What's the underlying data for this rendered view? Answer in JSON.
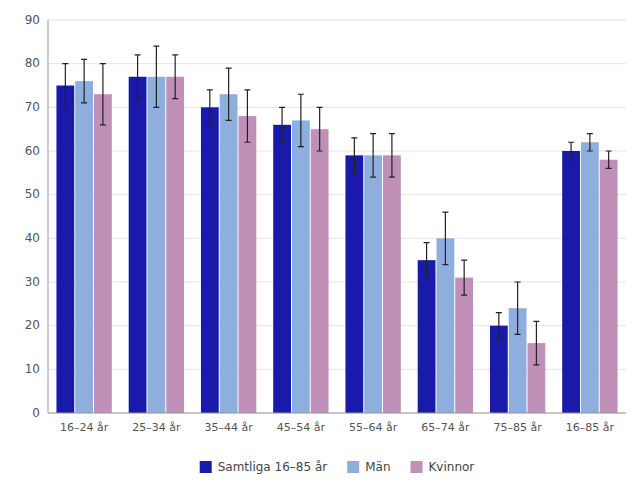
{
  "chart_data": {
    "type": "bar",
    "categories": [
      "16–24 år",
      "25–34 år",
      "35–44 år",
      "45–54 år",
      "55–64 år",
      "65–74 år",
      "75–85 år",
      "16–85 år"
    ],
    "series": [
      {
        "name": "Samtliga 16–85 år",
        "color": "#1a1aaa",
        "values": [
          75,
          77,
          70,
          66,
          59,
          35,
          20,
          60
        ],
        "errors": [
          5,
          5,
          4,
          4,
          4,
          4,
          3,
          2
        ]
      },
      {
        "name": "Män",
        "color": "#8eaedd",
        "values": [
          76,
          77,
          73,
          67,
          59,
          40,
          24,
          62
        ],
        "errors": [
          5,
          7,
          6,
          6,
          5,
          6,
          6,
          2
        ]
      },
      {
        "name": "Kvinnor",
        "color": "#c090b8",
        "values": [
          73,
          77,
          68,
          65,
          59,
          31,
          16,
          58
        ],
        "errors": [
          7,
          5,
          6,
          5,
          5,
          4,
          5,
          2
        ]
      }
    ],
    "ylim": [
      0,
      90
    ],
    "yticks": [
      0,
      10,
      20,
      30,
      40,
      50,
      60,
      70,
      80,
      90
    ],
    "grid": true,
    "legend": "bottom"
  }
}
